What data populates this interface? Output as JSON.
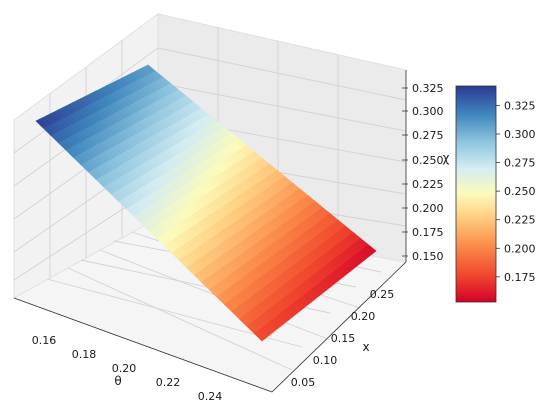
{
  "chart_data": {
    "type": "surface",
    "title": "",
    "xlabel": "θ",
    "ylabel": "x",
    "zlabel": "χ",
    "theta_ticks": [
      "0.16",
      "0.18",
      "0.20",
      "0.22",
      "0.24"
    ],
    "x_ticks": [
      "0.05",
      "0.10",
      "0.15",
      "0.20",
      "0.25"
    ],
    "z_ticks": [
      "0.150",
      "0.175",
      "0.200",
      "0.225",
      "0.250",
      "0.275",
      "0.300",
      "0.325"
    ],
    "colorbar_ticks": [
      "0.175",
      "0.200",
      "0.225",
      "0.250",
      "0.275",
      "0.300",
      "0.325"
    ],
    "colormap": "RdYlBu",
    "colorbar_range": [
      0.153,
      0.342
    ],
    "surface_corners": [
      {
        "theta": 0.15,
        "x": 0.3,
        "chi": 0.342
      },
      {
        "theta": 0.25,
        "x": 0.3,
        "chi": 0.155
      },
      {
        "theta": 0.15,
        "x": 0.04,
        "chi": 0.31
      },
      {
        "theta": 0.25,
        "x": 0.04,
        "chi": 0.175
      }
    ],
    "grid": true,
    "colorbar_placement": "right"
  }
}
